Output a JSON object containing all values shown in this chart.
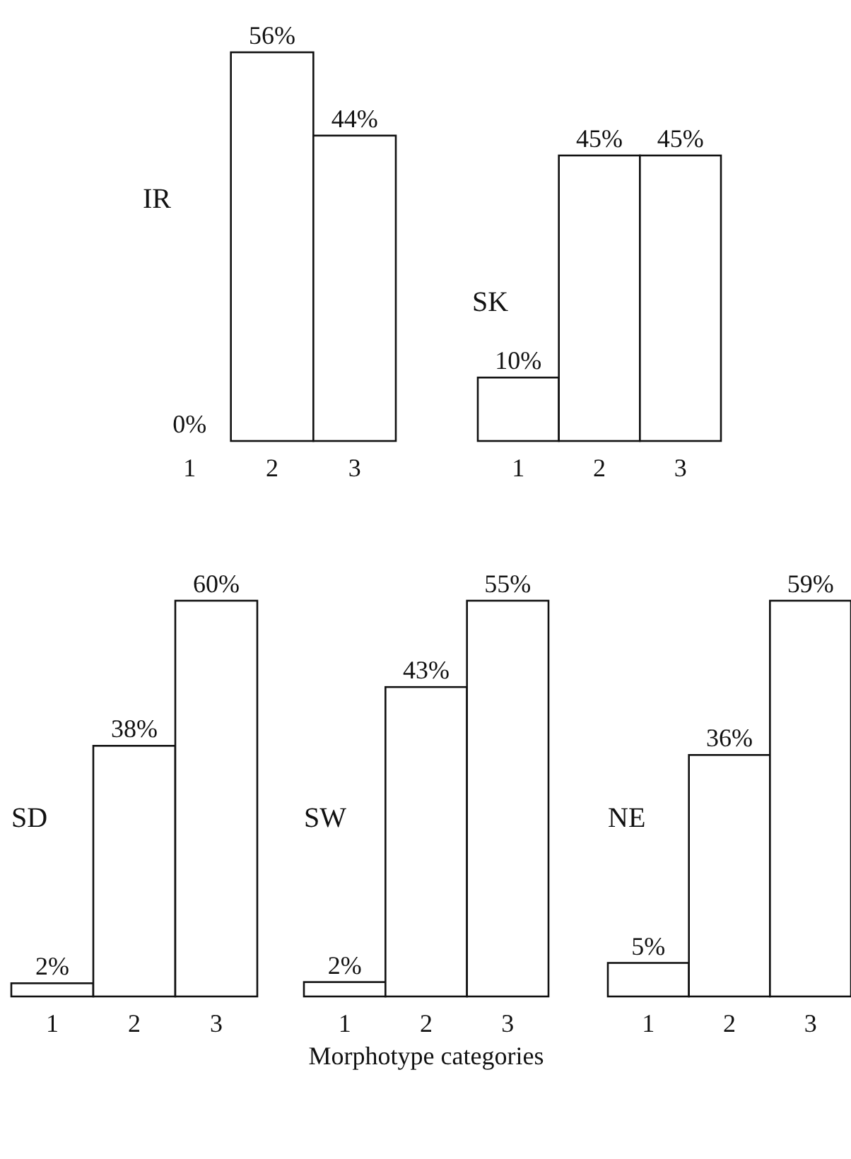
{
  "chart_data": [
    {
      "type": "bar",
      "title": "IR",
      "categories": [
        "1",
        "2",
        "3"
      ],
      "values": [
        0,
        56,
        44
      ],
      "value_labels": [
        "0%",
        "56%",
        "44%"
      ],
      "color": "#ffffff"
    },
    {
      "type": "bar",
      "title": "SK",
      "categories": [
        "1",
        "2",
        "3"
      ],
      "values": [
        10,
        45,
        45
      ],
      "value_labels": [
        "10%",
        "45%",
        "45%"
      ],
      "color": "#ffffff"
    },
    {
      "type": "bar",
      "title": "SD",
      "categories": [
        "1",
        "2",
        "3"
      ],
      "values": [
        2,
        38,
        60
      ],
      "value_labels": [
        "2%",
        "38%",
        "60%"
      ],
      "color": "#ffffff"
    },
    {
      "type": "bar",
      "title": "SW",
      "categories": [
        "1",
        "2",
        "3"
      ],
      "values": [
        2,
        43,
        55
      ],
      "value_labels": [
        "2%",
        "43%",
        "55%"
      ],
      "color": "#ffffff",
      "xlabel": "Morphotype categories"
    },
    {
      "type": "bar",
      "title": "NE",
      "categories": [
        "1",
        "2",
        "3"
      ],
      "values": [
        5,
        36,
        59
      ],
      "value_labels": [
        "5%",
        "36%",
        "59%"
      ],
      "color": "#ffffff"
    }
  ]
}
